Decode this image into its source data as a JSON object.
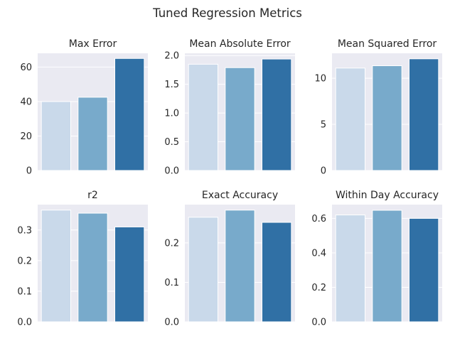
{
  "figure_title": "Tuned Regression Metrics",
  "chart_data": [
    {
      "type": "bar",
      "title": "Max Error",
      "xlabel": "",
      "ylabel": "",
      "categories": [
        "",
        "",
        ""
      ],
      "values": [
        40,
        42.5,
        65
      ],
      "colors": [
        "#c9d9ea",
        "#78aacb",
        "#3070a5"
      ],
      "ylim": [
        0,
        68
      ],
      "yticks": [
        0,
        20,
        40,
        60
      ],
      "ytick_labels": [
        "0",
        "20",
        "40",
        "60"
      ],
      "grid": true
    },
    {
      "type": "bar",
      "title": "Mean Absolute Error",
      "xlabel": "",
      "ylabel": "",
      "categories": [
        "",
        "",
        ""
      ],
      "values": [
        1.85,
        1.79,
        1.94
      ],
      "colors": [
        "#c9d9ea",
        "#78aacb",
        "#3070a5"
      ],
      "ylim": [
        0,
        2.04
      ],
      "yticks": [
        0,
        0.5,
        1.0,
        1.5,
        2.0
      ],
      "ytick_labels": [
        "0.0",
        "0.5",
        "1.0",
        "1.5",
        "2.0"
      ],
      "grid": true
    },
    {
      "type": "bar",
      "title": "Mean Squared Error",
      "xlabel": "",
      "ylabel": "",
      "categories": [
        "",
        "",
        ""
      ],
      "values": [
        11.1,
        11.35,
        12.1
      ],
      "colors": [
        "#c9d9ea",
        "#78aacb",
        "#3070a5"
      ],
      "ylim": [
        0,
        12.7
      ],
      "yticks": [
        0,
        5,
        10
      ],
      "ytick_labels": [
        "0",
        "5",
        "10"
      ],
      "grid": true
    },
    {
      "type": "bar",
      "title": "r2",
      "xlabel": "",
      "ylabel": "",
      "categories": [
        "",
        "",
        ""
      ],
      "values": [
        0.365,
        0.355,
        0.31
      ],
      "colors": [
        "#c9d9ea",
        "#78aacb",
        "#3070a5"
      ],
      "ylim": [
        0,
        0.383
      ],
      "yticks": [
        0,
        0.1,
        0.2,
        0.3
      ],
      "ytick_labels": [
        "0.0",
        "0.1",
        "0.2",
        "0.3"
      ],
      "grid": true
    },
    {
      "type": "bar",
      "title": "Exact Accuracy",
      "xlabel": "",
      "ylabel": "",
      "categories": [
        "",
        "",
        ""
      ],
      "values": [
        0.265,
        0.283,
        0.252
      ],
      "colors": [
        "#c9d9ea",
        "#78aacb",
        "#3070a5"
      ],
      "ylim": [
        0,
        0.297
      ],
      "yticks": [
        0,
        0.1,
        0.2
      ],
      "ytick_labels": [
        "0.0",
        "0.1",
        "0.2"
      ],
      "grid": true
    },
    {
      "type": "bar",
      "title": "Within Day Accuracy",
      "xlabel": "",
      "ylabel": "",
      "categories": [
        "",
        "",
        ""
      ],
      "values": [
        0.62,
        0.647,
        0.6
      ],
      "colors": [
        "#c9d9ea",
        "#78aacb",
        "#3070a5"
      ],
      "ylim": [
        0,
        0.68
      ],
      "yticks": [
        0,
        0.2,
        0.4,
        0.6
      ],
      "ytick_labels": [
        "0.0",
        "0.2",
        "0.4",
        "0.6"
      ],
      "grid": true
    }
  ]
}
